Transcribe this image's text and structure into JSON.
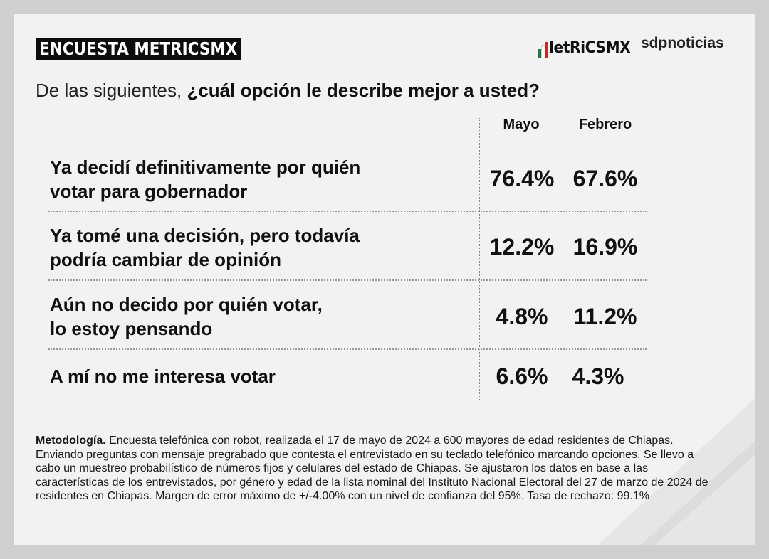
{
  "header": {
    "title": "ENCUESTA METRICSMX",
    "logo_metrics_text": "letRiCSMX",
    "logo_sdp_text": "sdpnoticias"
  },
  "question": {
    "plain": "De las siguientes, ",
    "bold": "¿cuál opción le describe mejor a usted?"
  },
  "chart_data": {
    "type": "table",
    "columns": [
      "Mayo",
      "Febrero"
    ],
    "rows": [
      {
        "label_line1": "Ya decidí definitivamente por quién",
        "label_line2": "votar para gobernador",
        "mayo": "76.4%",
        "febrero": "67.6%"
      },
      {
        "label_line1": "Ya tomé una decisión, pero todavía",
        "label_line2": "podría cambiar de opinión",
        "mayo": "12.2%",
        "febrero": "16.9%"
      },
      {
        "label_line1": "Aún no decido por quién votar,",
        "label_line2": "lo estoy pensando",
        "mayo": "4.8%",
        "febrero": "11.2%"
      },
      {
        "label_line1": "A mí no me interesa votar",
        "label_line2": "",
        "mayo": "6.6%",
        "febrero": "4.3%"
      }
    ]
  },
  "methodology": {
    "label": "Metodología.",
    "text": " Encuesta telefónica con robot, realizada el 17 de mayo de 2024 a 600 mayores de edad residentes de Chiapas. Enviando preguntas con mensaje pregrabado que contesta el entrevistado en su teclado telefónico marcando opciones. Se llevo a cabo un muestreo probabilístico de números fijos y celulares del estado de Chiapas. Se ajustaron los datos en base a las características de los entrevistados, por género y edad de la lista nominal del Instituto Nacional Electoral del 27 de marzo de 2024 de residentes en Chiapas. Margen de error máximo de +/-4.00% con un nivel de confianza del 95%. Tasa de rechazo: 99.1%"
  },
  "colors": {
    "background": "#f2f2f2",
    "title_bg": "#0d0d0d",
    "flag_green": "#1f7a3a",
    "flag_white": "#ffffff",
    "flag_red": "#c62828"
  }
}
